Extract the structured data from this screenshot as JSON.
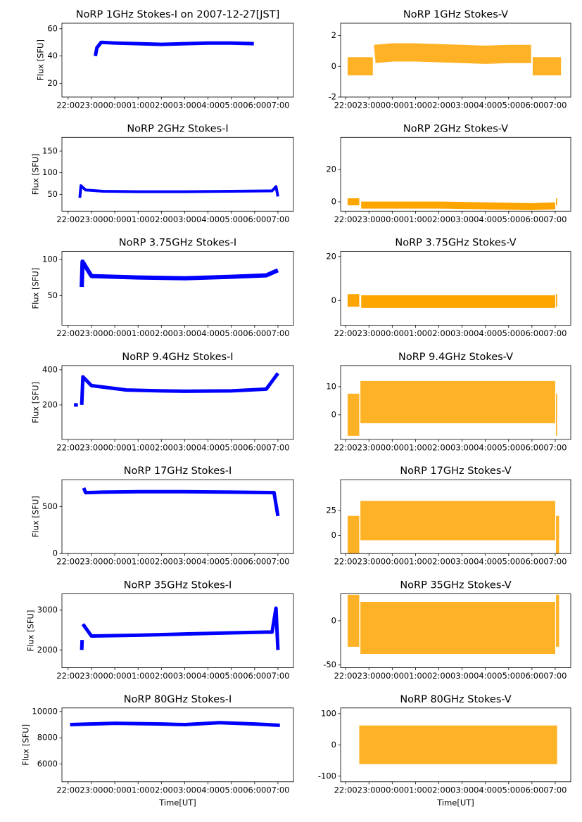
{
  "chart_data": [
    {
      "type": "line",
      "title": "NoRP 1GHz Stokes-I on 2007-12-27[JST]",
      "ylabel": "Flux [SFU]",
      "color": "#0000ff",
      "x": [
        "23:10",
        "23:14",
        "23:25",
        "00:00",
        "01:00",
        "02:00",
        "03:00",
        "04:00",
        "05:00",
        "05:58"
      ],
      "values": [
        40,
        46,
        50,
        49.5,
        49,
        48.5,
        49,
        49.5,
        49.5,
        49
      ],
      "xlim": [
        "21:44",
        "07:40"
      ],
      "xticks": [
        "22:00",
        "23:00",
        "00:00",
        "01:00",
        "02:00",
        "03:00",
        "04:00",
        "05:00",
        "06:00",
        "07:00"
      ],
      "ylim": [
        10,
        64
      ],
      "yticks": [
        20,
        40,
        60
      ]
    },
    {
      "type": "line",
      "title": "NoRP 1GHz Stokes-V",
      "color": "#ffa500",
      "x": [
        "22:05",
        "23:10",
        "23:12",
        "23:15",
        "00:00",
        "01:00",
        "02:00",
        "03:00",
        "04:00",
        "05:00",
        "05:58",
        "06:00",
        "06:02",
        "07:15"
      ],
      "values": [
        0,
        0,
        null,
        0.8,
        0.9,
        0.9,
        0.85,
        0.8,
        0.75,
        0.8,
        0.8,
        null,
        0,
        0
      ],
      "xlim": [
        "21:47",
        "07:40"
      ],
      "xticks": [
        "22:00",
        "23:00",
        "00:00",
        "01:00",
        "02:00",
        "03:00",
        "04:00",
        "05:00",
        "06:00",
        "07:00"
      ],
      "ylim": [
        -2,
        2.8
      ],
      "yticks": [
        -2,
        0,
        2
      ]
    },
    {
      "type": "line",
      "title": "NoRP 2GHz Stokes-I",
      "ylabel": "Flux [SFU]",
      "color": "#0000ff",
      "x": [
        "22:30",
        "22:33",
        "22:45",
        "23:30",
        "01:00",
        "03:00",
        "05:00",
        "06:45",
        "06:55",
        "07:00"
      ],
      "values": [
        42,
        70,
        60,
        57,
        56,
        56,
        57,
        58,
        68,
        45
      ],
      "xlim": [
        "21:44",
        "07:40"
      ],
      "xticks": [
        "22:00",
        "23:00",
        "00:00",
        "01:00",
        "02:00",
        "03:00",
        "04:00",
        "05:00",
        "06:00",
        "07:00"
      ],
      "ylim": [
        11,
        182
      ],
      "yticks": [
        50,
        100,
        150
      ]
    },
    {
      "type": "line",
      "title": "NoRP 2GHz Stokes-V",
      "color": "#ffa500",
      "x": [
        "22:05",
        "22:35",
        "22:37",
        "22:40",
        "00:00",
        "02:00",
        "04:00",
        "06:00",
        "07:00",
        "07:01",
        "07:02",
        "07:05"
      ],
      "values": [
        0,
        0,
        null,
        -2,
        -2,
        -2,
        -2.5,
        -3,
        -2.5,
        null,
        0,
        0
      ],
      "xlim": [
        "21:47",
        "07:40"
      ],
      "xticks": [
        "22:00",
        "23:00",
        "00:00",
        "01:00",
        "02:00",
        "03:00",
        "04:00",
        "05:00",
        "06:00",
        "07:00"
      ],
      "ylim": [
        -5.8,
        40
      ],
      "yticks": [
        0,
        20
      ]
    },
    {
      "type": "line",
      "title": "NoRP 3.75GHz Stokes-I",
      "ylabel": "Flux [SFU]",
      "color": "#0000ff",
      "x": [
        "22:35",
        "22:37",
        "23:00",
        "01:00",
        "03:00",
        "05:00",
        "06:30",
        "07:00"
      ],
      "values": [
        62,
        97,
        77,
        75,
        74,
        76,
        78,
        85
      ],
      "xlim": [
        "21:44",
        "07:40"
      ],
      "xticks": [
        "22:00",
        "23:00",
        "00:00",
        "01:00",
        "02:00",
        "03:00",
        "04:00",
        "05:00",
        "06:00",
        "07:00"
      ],
      "ylim": [
        9,
        111
      ],
      "yticks": [
        50,
        100
      ]
    },
    {
      "type": "line",
      "title": "NoRP 3.75GHz Stokes-V",
      "color": "#ffa500",
      "x": [
        "22:05",
        "22:35",
        "22:36",
        "22:40",
        "00:00",
        "02:00",
        "04:00",
        "06:00",
        "07:00",
        "07:01",
        "07:02",
        "07:05"
      ],
      "values": [
        0,
        0,
        null,
        -0.5,
        -0.5,
        -0.5,
        -0.5,
        -0.5,
        -0.5,
        null,
        0,
        0
      ],
      "xlim": [
        "21:47",
        "07:40"
      ],
      "xticks": [
        "22:00",
        "23:00",
        "00:00",
        "01:00",
        "02:00",
        "03:00",
        "04:00",
        "05:00",
        "06:00",
        "07:00"
      ],
      "ylim": [
        -11.3,
        22.3
      ],
      "yticks": [
        0,
        20
      ]
    },
    {
      "type": "line",
      "title": "NoRP 9.4GHz Stokes-I",
      "ylabel": "Flux [SFU]",
      "color": "#0000ff",
      "x": [
        "22:15",
        "22:25",
        "22:30",
        "22:35",
        "22:38",
        "23:00",
        "00:30",
        "02:00",
        "03:00",
        "05:00",
        "06:30",
        "07:00"
      ],
      "values": [
        200,
        200,
        null,
        200,
        360,
        310,
        285,
        280,
        278,
        280,
        290,
        380
      ],
      "xlim": [
        "21:44",
        "07:40"
      ],
      "xticks": [
        "22:00",
        "23:00",
        "00:00",
        "01:00",
        "02:00",
        "03:00",
        "04:00",
        "05:00",
        "06:00",
        "07:00"
      ],
      "ylim": [
        4,
        424
      ],
      "yticks": [
        200,
        400
      ]
    },
    {
      "type": "line",
      "title": "NoRP 9.4GHz Stokes-V",
      "color": "#ffa500",
      "x": [
        "22:05",
        "22:35",
        "22:36",
        "22:38",
        "00:00",
        "02:00",
        "04:00",
        "06:00",
        "07:00",
        "07:01",
        "07:02",
        "07:05"
      ],
      "values": [
        0,
        0,
        null,
        4.5,
        4.5,
        4.5,
        4.5,
        4.5,
        4.5,
        null,
        0,
        0
      ],
      "xlim": [
        "21:47",
        "07:40"
      ],
      "xticks": [
        "22:00",
        "23:00",
        "00:00",
        "01:00",
        "02:00",
        "03:00",
        "04:00",
        "05:00",
        "06:00",
        "07:00"
      ],
      "ylim": [
        -8.75,
        17.5
      ],
      "yticks": [
        0,
        10
      ]
    },
    {
      "type": "line",
      "title": "NoRP 17GHz Stokes-I",
      "ylabel": "Flux [SFU]",
      "color": "#0000ff",
      "x": [
        "22:40",
        "22:45",
        "23:30",
        "01:00",
        "03:00",
        "05:00",
        "06:50",
        "07:00"
      ],
      "values": [
        700,
        650,
        655,
        660,
        660,
        655,
        650,
        400
      ],
      "xlim": [
        "21:44",
        "07:40"
      ],
      "xticks": [
        "22:00",
        "23:00",
        "00:00",
        "01:00",
        "02:00",
        "03:00",
        "04:00",
        "05:00",
        "06:00",
        "07:00"
      ],
      "ylim": [
        0,
        788
      ],
      "yticks": [
        0,
        500
      ]
    },
    {
      "type": "line",
      "title": "NoRP 17GHz Stokes-V",
      "color": "#ffa500",
      "x": [
        "22:05",
        "22:35",
        "22:36",
        "22:38",
        "00:00",
        "02:00",
        "04:00",
        "06:00",
        "07:00",
        "07:01",
        "07:02",
        "07:10"
      ],
      "values": [
        0,
        0,
        null,
        15,
        15,
        15,
        15,
        15,
        15,
        null,
        0,
        0
      ],
      "xlim": [
        "21:47",
        "07:40"
      ],
      "xticks": [
        "22:00",
        "23:00",
        "00:00",
        "01:00",
        "02:00",
        "03:00",
        "04:00",
        "05:00",
        "06:00",
        "07:00"
      ],
      "ylim": [
        -18,
        56
      ],
      "yticks": [
        0,
        25
      ]
    },
    {
      "type": "line",
      "title": "NoRP 35GHz Stokes-I",
      "ylabel": "Flux [SFU]",
      "color": "#0000ff",
      "x": [
        "22:35",
        "22:36",
        "22:37",
        "22:38",
        "23:00",
        "01:00",
        "03:00",
        "05:00",
        "06:45",
        "06:55",
        "07:00"
      ],
      "values": [
        2000,
        2250,
        null,
        2650,
        2350,
        2370,
        2400,
        2430,
        2450,
        3050,
        2000
      ],
      "xlim": [
        "21:44",
        "07:40"
      ],
      "xticks": [
        "22:00",
        "23:00",
        "00:00",
        "01:00",
        "02:00",
        "03:00",
        "04:00",
        "05:00",
        "06:00",
        "07:00"
      ],
      "ylim": [
        1554,
        3411
      ],
      "yticks": [
        2000,
        3000
      ]
    },
    {
      "type": "line",
      "title": "NoRP 35GHz Stokes-V",
      "color": "#ffa500",
      "x": [
        "22:05",
        "22:35",
        "22:36",
        "22:38",
        "00:00",
        "02:00",
        "04:00",
        "06:00",
        "07:00",
        "07:01",
        "07:02",
        "07:10"
      ],
      "values": [
        0,
        0,
        null,
        -8,
        -8,
        -8,
        -8,
        -8,
        -8,
        null,
        0,
        0
      ],
      "xlim": [
        "21:47",
        "07:40"
      ],
      "xticks": [
        "22:00",
        "23:00",
        "00:00",
        "01:00",
        "02:00",
        "03:00",
        "04:00",
        "05:00",
        "06:00",
        "07:00"
      ],
      "ylim": [
        -53,
        30.6
      ],
      "yticks": [
        -50,
        0
      ]
    },
    {
      "type": "line",
      "title": "NoRP 80GHz Stokes-I",
      "ylabel": "Flux [SFU]",
      "xlabel": "Time[UT]",
      "color": "#0000ff",
      "x": [
        "22:05",
        "23:00",
        "00:00",
        "02:00",
        "03:00",
        "04:30",
        "06:00",
        "07:05"
      ],
      "values": [
        9000,
        9050,
        9100,
        9050,
        9000,
        9150,
        9050,
        8950
      ],
      "xlim": [
        "21:44",
        "07:40"
      ],
      "xticks": [
        "22:00",
        "23:00",
        "00:00",
        "01:00",
        "02:00",
        "03:00",
        "04:00",
        "05:00",
        "06:00",
        "07:00"
      ],
      "ylim": [
        4650,
        10270
      ],
      "yticks": [
        6000,
        8000,
        10000
      ]
    },
    {
      "type": "line",
      "title": "NoRP 80GHz Stokes-V",
      "xlabel": "Time[UT]",
      "color": "#ffa500",
      "x": [
        "22:35",
        "23:00",
        "00:00",
        "01:00",
        "02:00",
        "03:00",
        "04:00",
        "05:00",
        "06:00",
        "07:05"
      ],
      "values": [
        0,
        0,
        0,
        0,
        0,
        0,
        0,
        0,
        0,
        0
      ],
      "xlim": [
        "21:47",
        "07:40"
      ],
      "xticks": [
        "22:00",
        "23:00",
        "00:00",
        "01:00",
        "02:00",
        "03:00",
        "04:00",
        "05:00",
        "06:00",
        "07:00"
      ],
      "ylim": [
        -118,
        118
      ],
      "yticks": [
        -100,
        0,
        100
      ]
    }
  ]
}
